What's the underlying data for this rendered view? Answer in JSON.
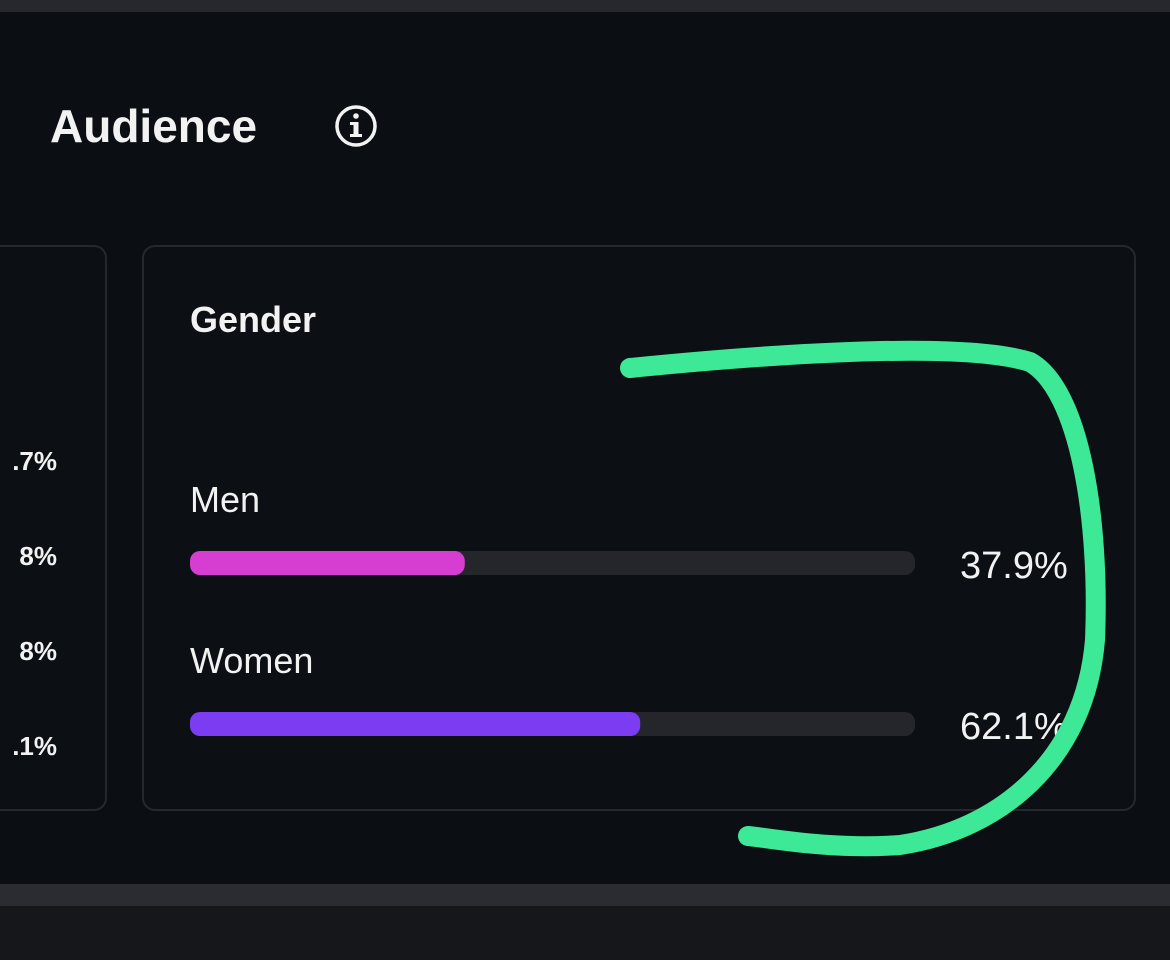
{
  "header": {
    "title": "Audience"
  },
  "left_card": {
    "labels": [
      ".7%",
      "8%",
      "8%",
      ".1%"
    ]
  },
  "chart_data": {
    "type": "bar",
    "title": "Gender",
    "categories": [
      "Men",
      "Women"
    ],
    "values": [
      37.9,
      62.1
    ],
    "value_labels": [
      "37.9%",
      "62.1%"
    ],
    "colors": [
      "#d63ed2",
      "#7c3df2"
    ],
    "xlim": [
      0,
      100
    ]
  }
}
